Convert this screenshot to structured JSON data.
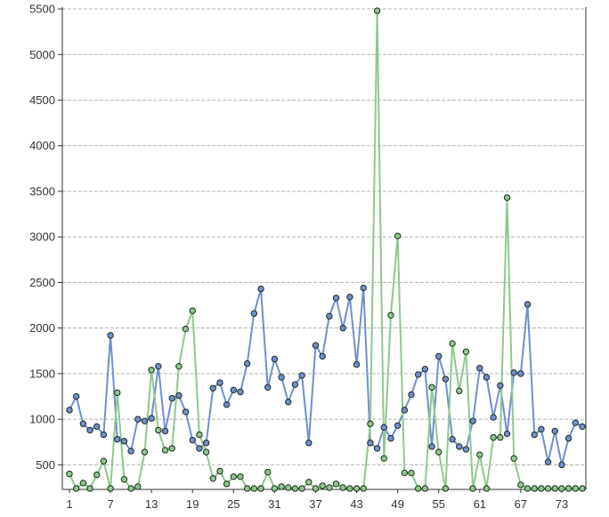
{
  "chart_data": {
    "type": "line",
    "title": "",
    "xlabel": "",
    "ylabel": "",
    "ylim": [
      230,
      5520
    ],
    "y_ticks": [
      500,
      1000,
      1500,
      2000,
      2500,
      3000,
      3500,
      4000,
      4500,
      5000,
      5500
    ],
    "y_tick_labels": [
      "500",
      "1000",
      "1500",
      "2000",
      "2500",
      "3000",
      "3500",
      "4000",
      "4500",
      "5000",
      "5500"
    ],
    "x_ticks": [
      1,
      7,
      13,
      19,
      25,
      31,
      37,
      43,
      49,
      55,
      61,
      67,
      73
    ],
    "x_tick_labels": [
      "1",
      "7",
      "13",
      "19",
      "25",
      "31",
      "37",
      "43",
      "49",
      "55",
      "61",
      "67",
      "73"
    ],
    "grid": {
      "horizontal": true,
      "vertical": false
    },
    "x": [
      1,
      2,
      3,
      4,
      5,
      6,
      7,
      8,
      9,
      10,
      11,
      12,
      13,
      14,
      15,
      16,
      17,
      18,
      19,
      20,
      21,
      22,
      23,
      24,
      25,
      26,
      27,
      28,
      29,
      30,
      31,
      32,
      33,
      34,
      35,
      36,
      37,
      38,
      39,
      40,
      41,
      42,
      43,
      44,
      45,
      46,
      47,
      48,
      49,
      50,
      51,
      52,
      53,
      54,
      55,
      56,
      57,
      58,
      59,
      60,
      61,
      62,
      63,
      64,
      65,
      66,
      67,
      68,
      69,
      70,
      71,
      72,
      73,
      74,
      75,
      76
    ],
    "series": [
      {
        "color": "#6f8fd0",
        "values": [
          1100,
          1250,
          950,
          880,
          920,
          830,
          1920,
          780,
          760,
          650,
          1000,
          980,
          1010,
          1580,
          870,
          1230,
          1260,
          1080,
          770,
          680,
          740,
          1340,
          1400,
          1160,
          1320,
          1300,
          1610,
          2160,
          2430,
          1350,
          1660,
          1460,
          1190,
          1380,
          1480,
          740,
          1810,
          1690,
          2130,
          2330,
          2000,
          2340,
          1600,
          2440,
          740,
          680,
          910,
          790,
          930,
          1100,
          1270,
          1490,
          1550,
          700,
          1690,
          1440,
          780,
          700,
          670,
          980,
          1560,
          1460,
          1020,
          1370,
          840,
          1510,
          1500,
          2260,
          830,
          890,
          530,
          870,
          500,
          790,
          960,
          920
        ]
      },
      {
        "color": "#8ec88e",
        "values": [
          400,
          240,
          300,
          240,
          390,
          540,
          240,
          1290,
          340,
          240,
          260,
          640,
          1540,
          880,
          660,
          680,
          1580,
          1990,
          2190,
          830,
          640,
          350,
          430,
          290,
          370,
          370,
          240,
          240,
          240,
          420,
          240,
          260,
          250,
          240,
          240,
          310,
          240,
          270,
          250,
          290,
          250,
          240,
          240,
          240,
          950,
          5480,
          570,
          2140,
          3010,
          410,
          410,
          240,
          240,
          1350,
          640,
          240,
          1830,
          1310,
          1740,
          240,
          610,
          240,
          800,
          800,
          3430,
          570,
          280,
          240,
          240,
          240,
          240,
          240,
          240,
          240,
          240,
          240
        ]
      }
    ]
  }
}
